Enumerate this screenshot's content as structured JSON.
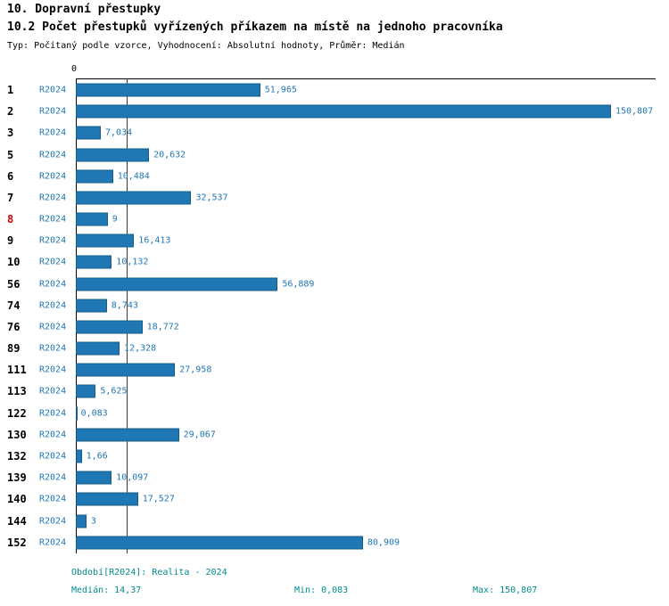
{
  "header": {
    "title": "10. Dopravní přestupky",
    "subtitle": "10.2 Počet přestupků vyřízených příkazem na místě na jednoho pracovníka",
    "meta": "Typ: Počítaný podle vzorce, Vyhodnocení: Absolutní hodnoty, Průměr: Medián"
  },
  "chart": {
    "zero_label": "0",
    "colors": {
      "bar": "#1f77b4",
      "bar_border": "#155d87",
      "series_text": "#1f77b4",
      "value_text": "#1f77b4",
      "highlight_category": "#cc0000",
      "footer_text": "#008b8b"
    }
  },
  "chart_data": {
    "type": "bar",
    "orientation": "horizontal",
    "title": "10.2 Počet přestupků vyřízených příkazem na místě na jednoho pracovníka",
    "categories": [
      "1",
      "2",
      "3",
      "5",
      "6",
      "7",
      "8",
      "9",
      "10",
      "56",
      "74",
      "76",
      "89",
      "111",
      "113",
      "122",
      "130",
      "132",
      "139",
      "140",
      "144",
      "152"
    ],
    "series": [
      {
        "name": "R2024",
        "values": [
          51.965,
          150.807,
          7.034,
          20.632,
          10.484,
          32.537,
          9,
          16.413,
          10.132,
          56.889,
          8.743,
          18.772,
          12.328,
          27.958,
          5.625,
          0.083,
          29.067,
          1.66,
          10.097,
          17.527,
          3,
          80.909
        ]
      }
    ],
    "value_labels": [
      "51,965",
      "150,807",
      "7,034",
      "20,632",
      "10,484",
      "32,537",
      "9",
      "16,413",
      "10,132",
      "56,889",
      "8,743",
      "18,772",
      "12,328",
      "27,958",
      "5,625",
      "0,083",
      "29,067",
      "1,66",
      "10,097",
      "17,527",
      "3",
      "80,909"
    ],
    "highlighted_categories": [
      "8"
    ],
    "median": 14.37,
    "min": 0.083,
    "max": 150.807,
    "xlim": [
      0,
      163.4
    ],
    "axis_zero_tick": "0",
    "grid": false,
    "legend": "none"
  },
  "footer": {
    "period": "Období[R2024]: Realita - 2024",
    "median": "Medián: 14,37",
    "min": "Min: 0,083",
    "max": "Max: 150,807"
  }
}
